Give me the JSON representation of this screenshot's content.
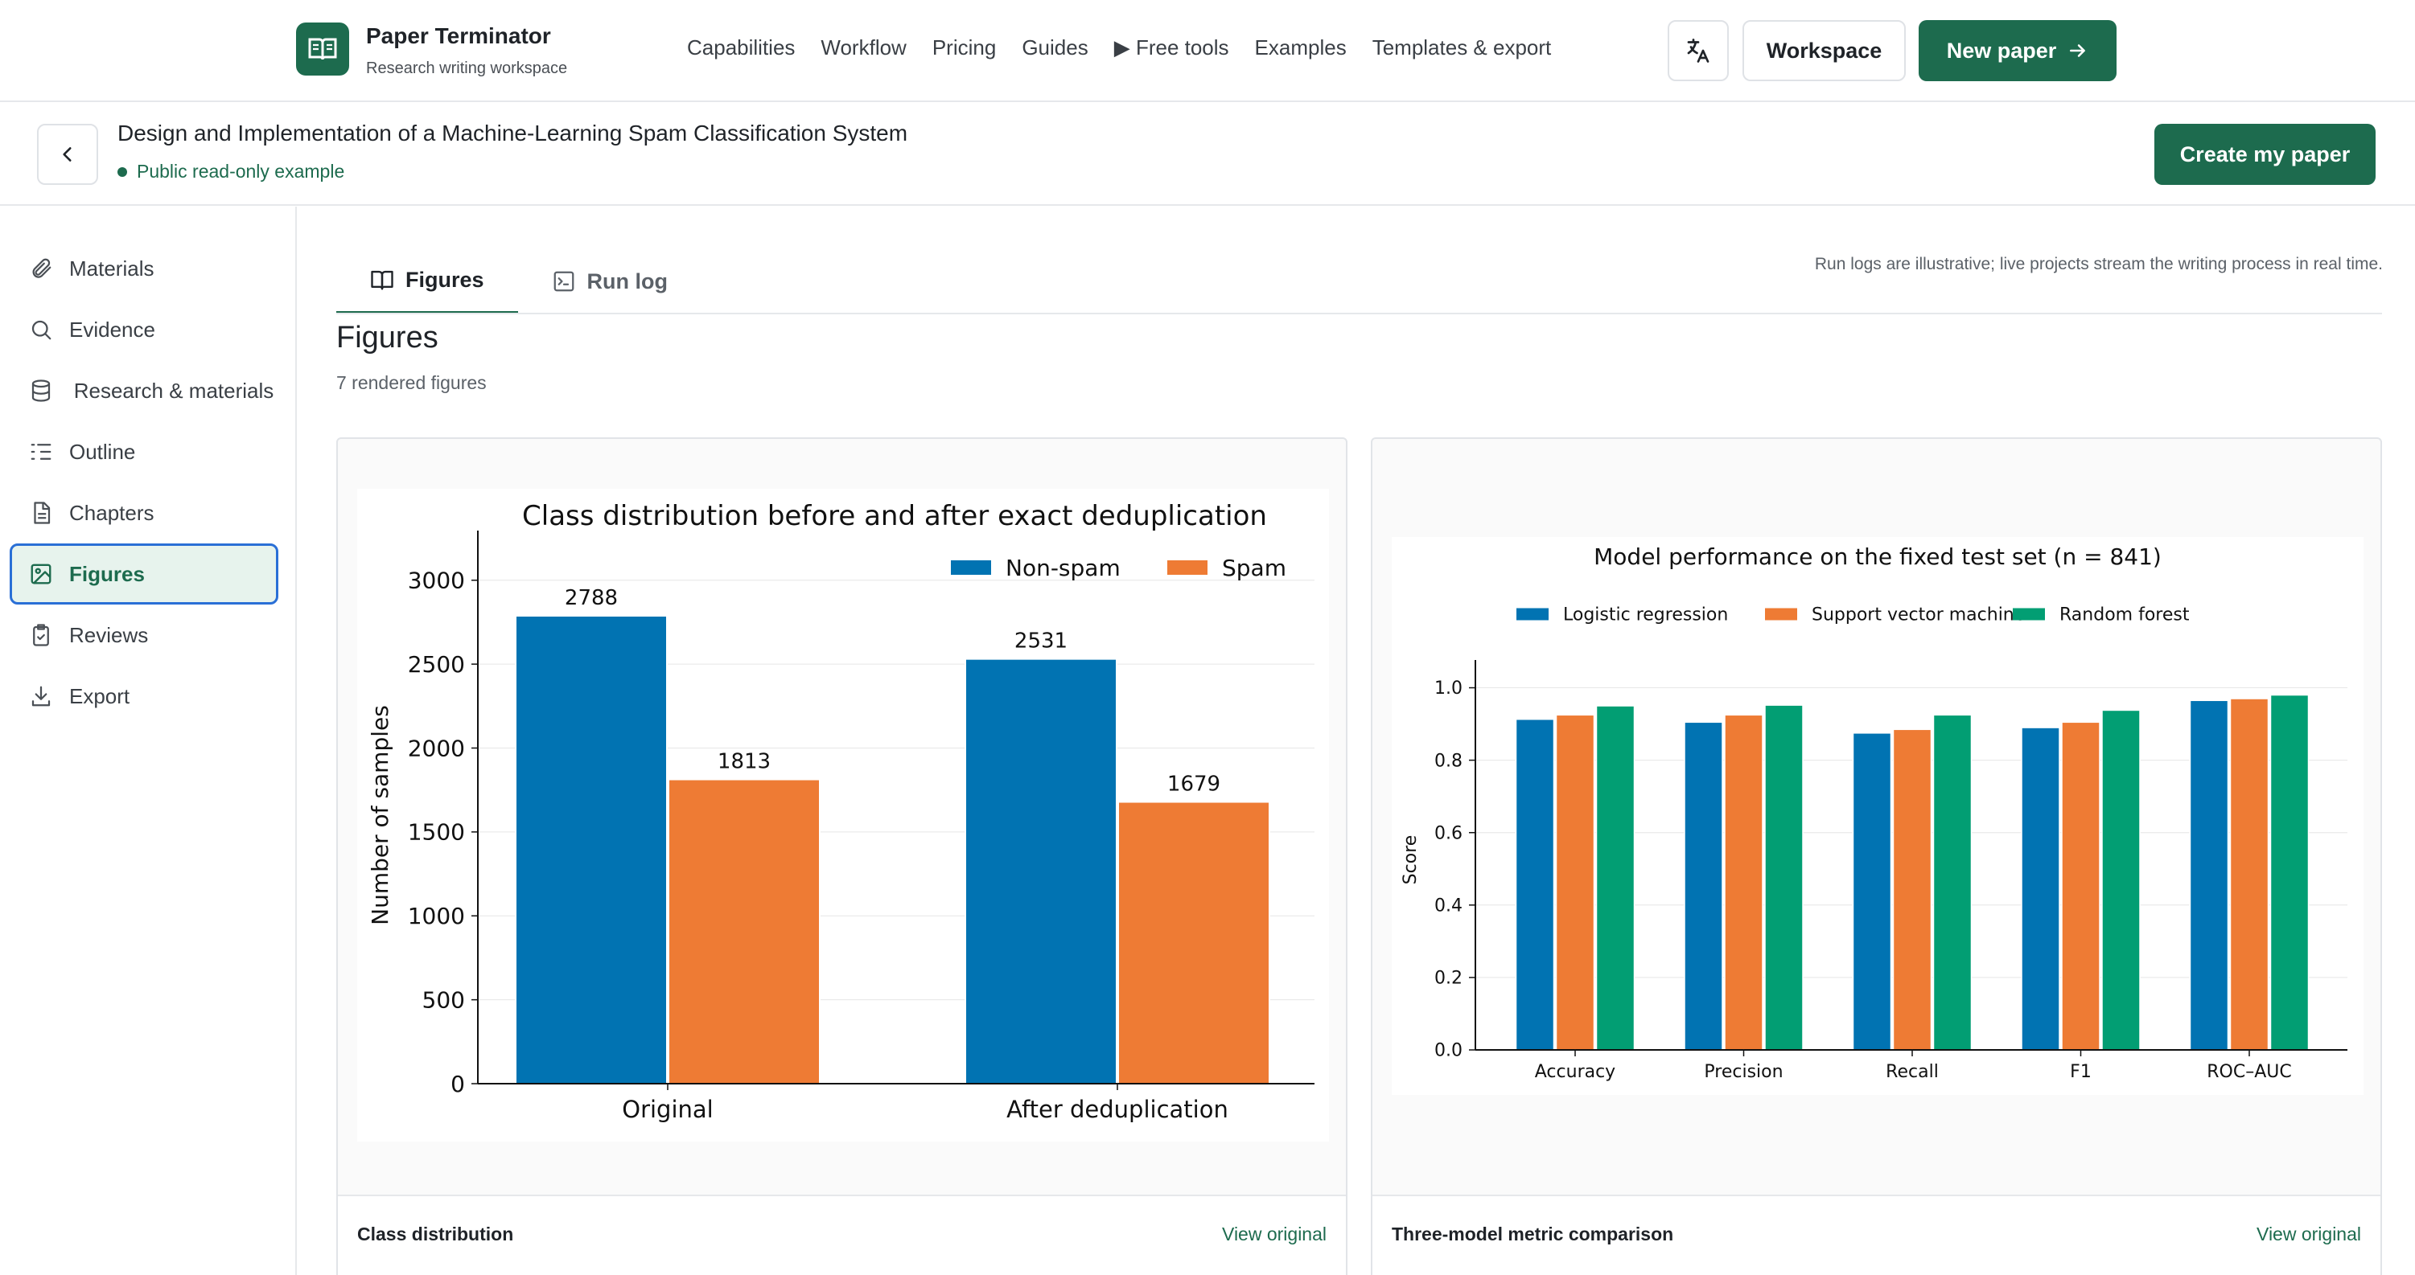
{
  "brand": {
    "name": "Paper Terminator",
    "subtitle": "Research writing workspace"
  },
  "nav": {
    "items": [
      "Capabilities",
      "Workflow",
      "Pricing",
      "Guides",
      "▶ Free tools",
      "Examples",
      "Templates & export"
    ],
    "workspace_label": "Workspace",
    "new_paper_label": "New paper"
  },
  "paper": {
    "title": "Design and Implementation of a Machine-Learning Spam Classification System",
    "status": "Public read-only example",
    "create_label": "Create my paper"
  },
  "sidebar": {
    "items": [
      {
        "label": "Materials",
        "icon": "paperclip-icon"
      },
      {
        "label": "Evidence",
        "icon": "search-icon"
      },
      {
        "label": "Research & materials",
        "icon": "database-icon"
      },
      {
        "label": "Outline",
        "icon": "list-icon"
      },
      {
        "label": "Chapters",
        "icon": "document-icon"
      },
      {
        "label": "Figures",
        "icon": "image-icon",
        "active": true
      },
      {
        "label": "Reviews",
        "icon": "clipboard-check-icon"
      },
      {
        "label": "Export",
        "icon": "download-icon"
      }
    ]
  },
  "tabs": {
    "figures": "Figures",
    "runlog": "Run log"
  },
  "runlog_note": "Run logs are illustrative; live projects stream the writing process in real time.",
  "section": {
    "title": "Figures",
    "subtitle": "7 rendered figures"
  },
  "cards": [
    {
      "caption": "Class distribution",
      "link": "View original"
    },
    {
      "caption": "Three-model metric comparison",
      "link": "View original"
    }
  ],
  "colors": {
    "brand": "#1d6b4e",
    "blue": "#0173b2",
    "orange": "#ee7b34",
    "teal": "#029e73"
  },
  "chart_data": [
    {
      "type": "bar",
      "title": "Class distribution before and after exact deduplication",
      "xlabel": "",
      "ylabel": "Number of samples",
      "categories": [
        "Original",
        "After deduplication"
      ],
      "series": [
        {
          "name": "Non-spam",
          "values": [
            2788,
            2531
          ]
        },
        {
          "name": "Spam",
          "values": [
            1813,
            1679
          ]
        }
      ],
      "ylim": [
        0,
        3200
      ],
      "yticks": [
        0,
        500,
        1000,
        1500,
        2000,
        2500,
        3000
      ],
      "data_labels": true,
      "legend": "top-right",
      "grid": true
    },
    {
      "type": "bar",
      "title": "Model performance on the fixed test set (n = 841)",
      "xlabel": "",
      "ylabel": "Score",
      "categories": [
        "Accuracy",
        "Precision",
        "Recall",
        "F1",
        "ROC–AUC"
      ],
      "series": [
        {
          "name": "Logistic regression",
          "values": [
            0.913,
            0.905,
            0.875,
            0.89,
            0.965
          ]
        },
        {
          "name": "Support vector machine",
          "values": [
            0.925,
            0.925,
            0.885,
            0.905,
            0.97
          ]
        },
        {
          "name": "Random forest",
          "values": [
            0.95,
            0.952,
            0.925,
            0.938,
            0.98
          ]
        }
      ],
      "ylim": [
        0,
        1.05
      ],
      "yticks": [
        0.0,
        0.2,
        0.4,
        0.6,
        0.8,
        1.0
      ],
      "legend": "top",
      "grid": true
    }
  ]
}
